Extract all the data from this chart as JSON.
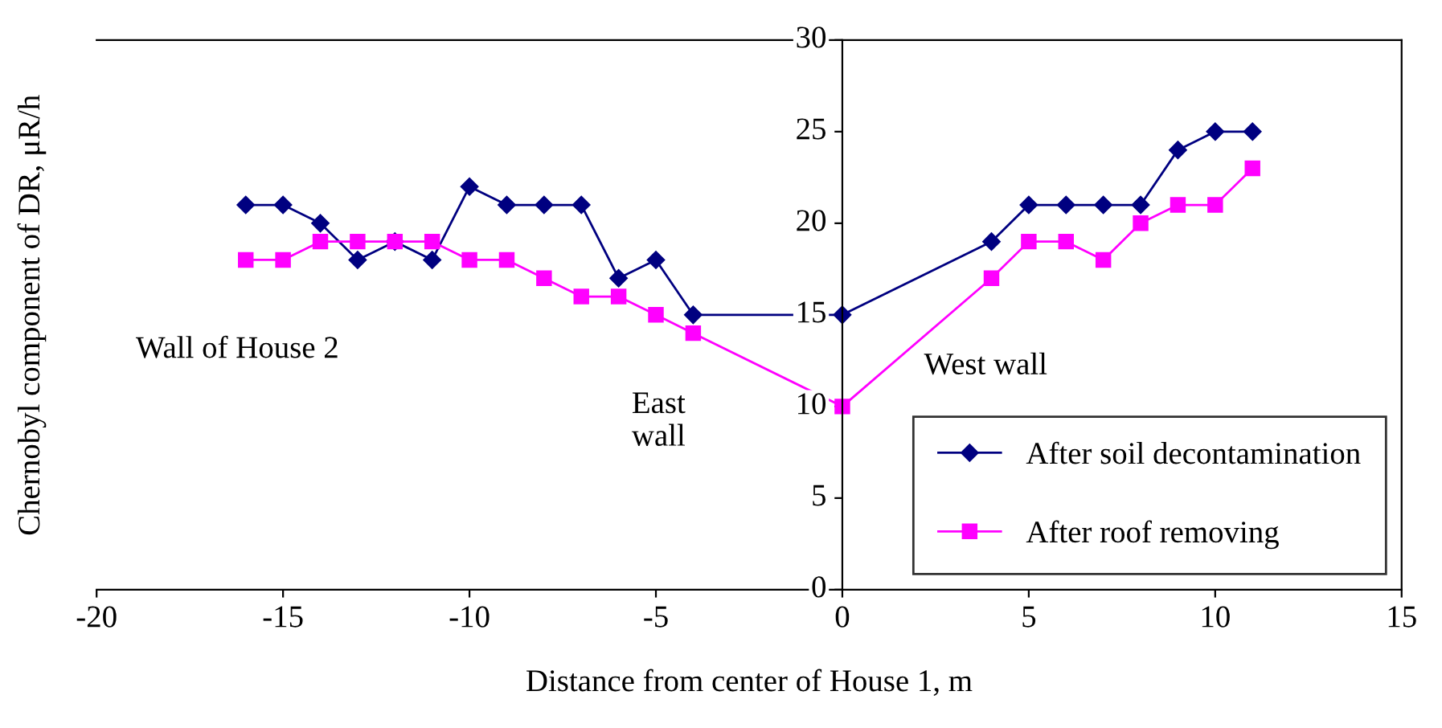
{
  "chart_data": {
    "type": "line",
    "xlabel": "Distance from center of House 1, m",
    "ylabel": "Chernobyl component of DR, μR/h",
    "xlim": [
      -20,
      15
    ],
    "xticks": [
      -20,
      -15,
      -10,
      -5,
      0,
      5,
      10,
      15
    ],
    "ylim": [
      0,
      30
    ],
    "yticks": [
      0,
      5,
      10,
      15,
      20,
      25,
      30
    ],
    "grid": false,
    "legend": "bottom right",
    "series": [
      {
        "name": "After soil decontamination",
        "color": "#000080",
        "marker": "diamond",
        "x": [
          -16,
          -15,
          -14,
          -13,
          -12,
          -11,
          -10,
          -9,
          -8,
          -7,
          -6,
          -5,
          -4,
          0,
          4,
          5,
          6,
          7,
          8,
          9,
          10,
          11
        ],
        "values": [
          21,
          21,
          20,
          18,
          19,
          18,
          22,
          21,
          21,
          21,
          17,
          18,
          15,
          15,
          19,
          21,
          21,
          21,
          21,
          24,
          25,
          25
        ]
      },
      {
        "name": "After roof removing",
        "color": "#ff00ff",
        "marker": "square",
        "x": [
          -16,
          -15,
          -14,
          -13,
          -12,
          -11,
          -10,
          -9,
          -8,
          -7,
          -6,
          -5,
          -4,
          0,
          4,
          5,
          6,
          7,
          8,
          9,
          10,
          11
        ],
        "values": [
          18,
          18,
          19,
          19,
          19,
          19,
          18,
          18,
          17,
          16,
          16,
          15,
          14,
          10,
          17,
          19,
          19,
          18,
          20,
          21,
          21,
          23
        ]
      }
    ],
    "annotations": [
      "Wall of House 2",
      "East\nwall",
      "West wall"
    ]
  }
}
